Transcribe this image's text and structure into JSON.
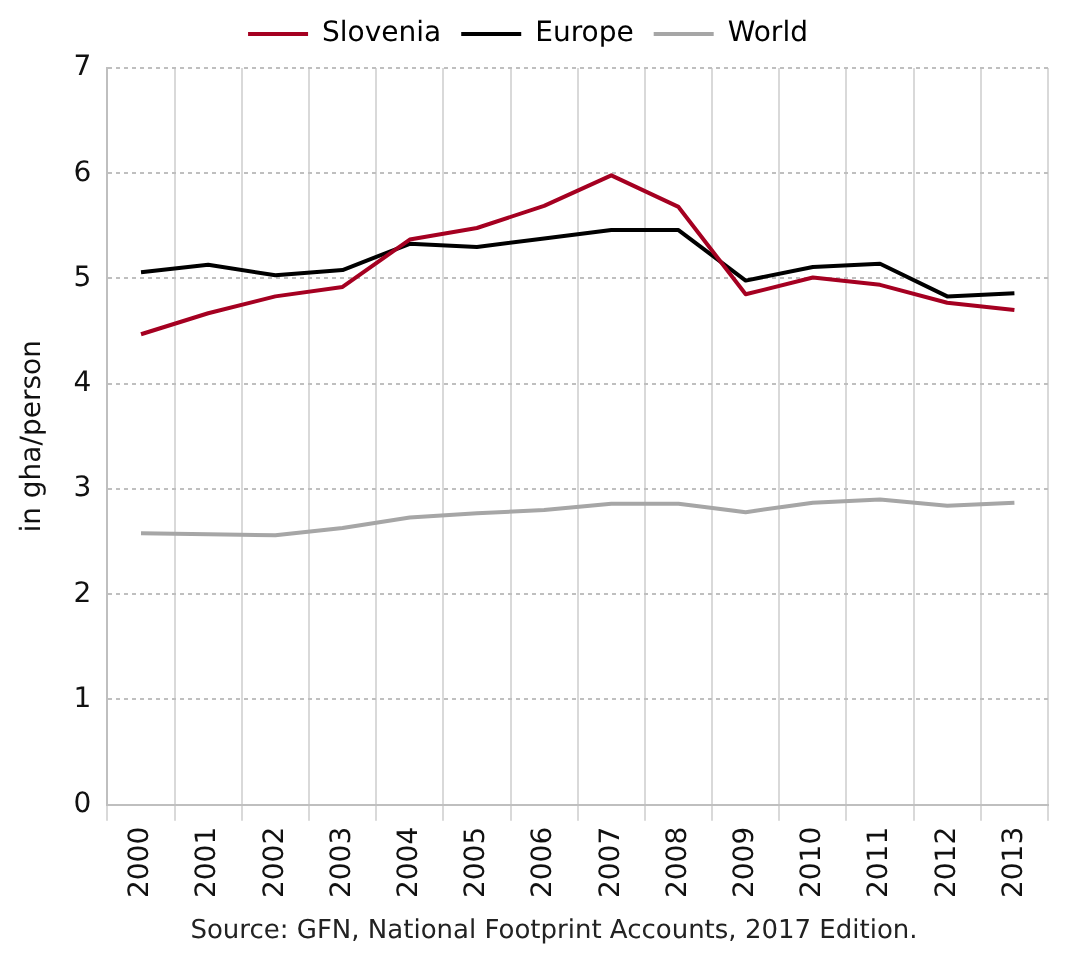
{
  "chart_data": {
    "type": "line",
    "ylabel": "in gha/person",
    "categories": [
      "2000",
      "2001",
      "2002",
      "2003",
      "2004",
      "2005",
      "2006",
      "2007",
      "2008",
      "2009",
      "2010",
      "2011",
      "2012",
      "2013"
    ],
    "series": [
      {
        "name": "Slovenia",
        "color": "#a50021",
        "values": [
          4.47,
          4.67,
          4.83,
          4.92,
          5.37,
          5.48,
          5.69,
          5.98,
          5.68,
          4.85,
          5.01,
          4.94,
          4.77,
          4.7
        ]
      },
      {
        "name": "Europe",
        "color": "#000000",
        "values": [
          5.06,
          5.13,
          5.03,
          5.08,
          5.33,
          5.3,
          5.38,
          5.46,
          5.46,
          4.98,
          5.11,
          5.14,
          4.83,
          4.86
        ]
      },
      {
        "name": "World",
        "color": "#a6a6a6",
        "values": [
          2.58,
          2.57,
          2.56,
          2.63,
          2.73,
          2.77,
          2.8,
          2.86,
          2.86,
          2.78,
          2.87,
          2.9,
          2.84,
          2.87
        ]
      }
    ],
    "ylim": [
      0,
      7
    ],
    "yticks": [
      0,
      1,
      2,
      3,
      4,
      5,
      6,
      7
    ],
    "grid": true,
    "legend": "top",
    "marker": "none",
    "line_style": "solid",
    "annotations": [
      "Source: GFN, National Footprint Accounts, 2017 Edition."
    ]
  }
}
